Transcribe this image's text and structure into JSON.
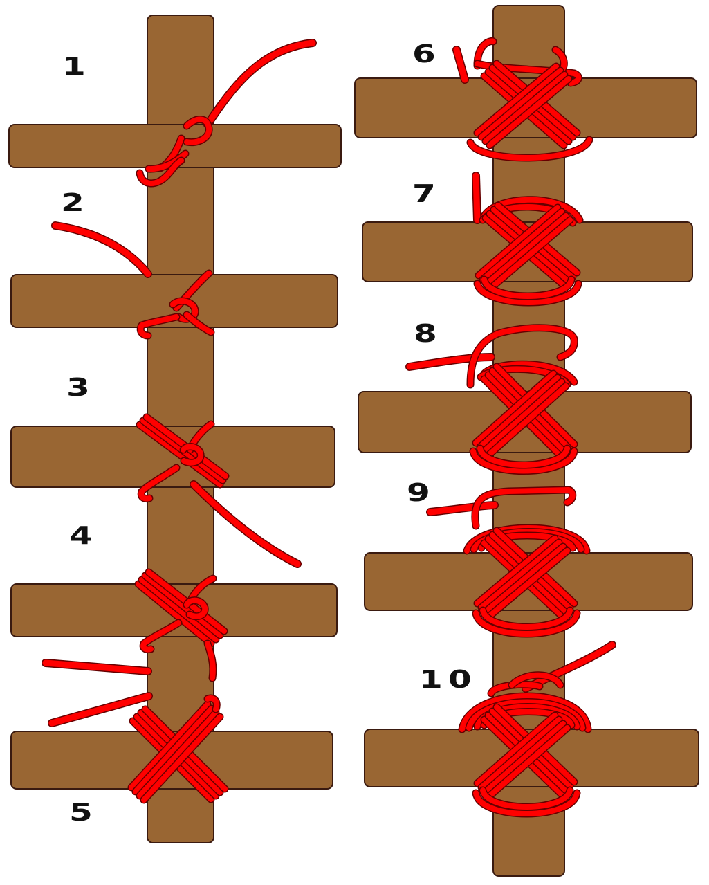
{
  "diagram": {
    "colors": {
      "pole": "#996633",
      "pole_outline": "#3a1a10",
      "rope": "#ff0000",
      "rope_outline": "#660000",
      "background": "#ffffff"
    },
    "steps": [
      {
        "label": "1"
      },
      {
        "label": "2"
      },
      {
        "label": "3"
      },
      {
        "label": "4"
      },
      {
        "label": "5"
      },
      {
        "label": "6"
      },
      {
        "label": "7"
      },
      {
        "label": "8"
      },
      {
        "label": "9"
      },
      {
        "label": "10"
      }
    ]
  }
}
